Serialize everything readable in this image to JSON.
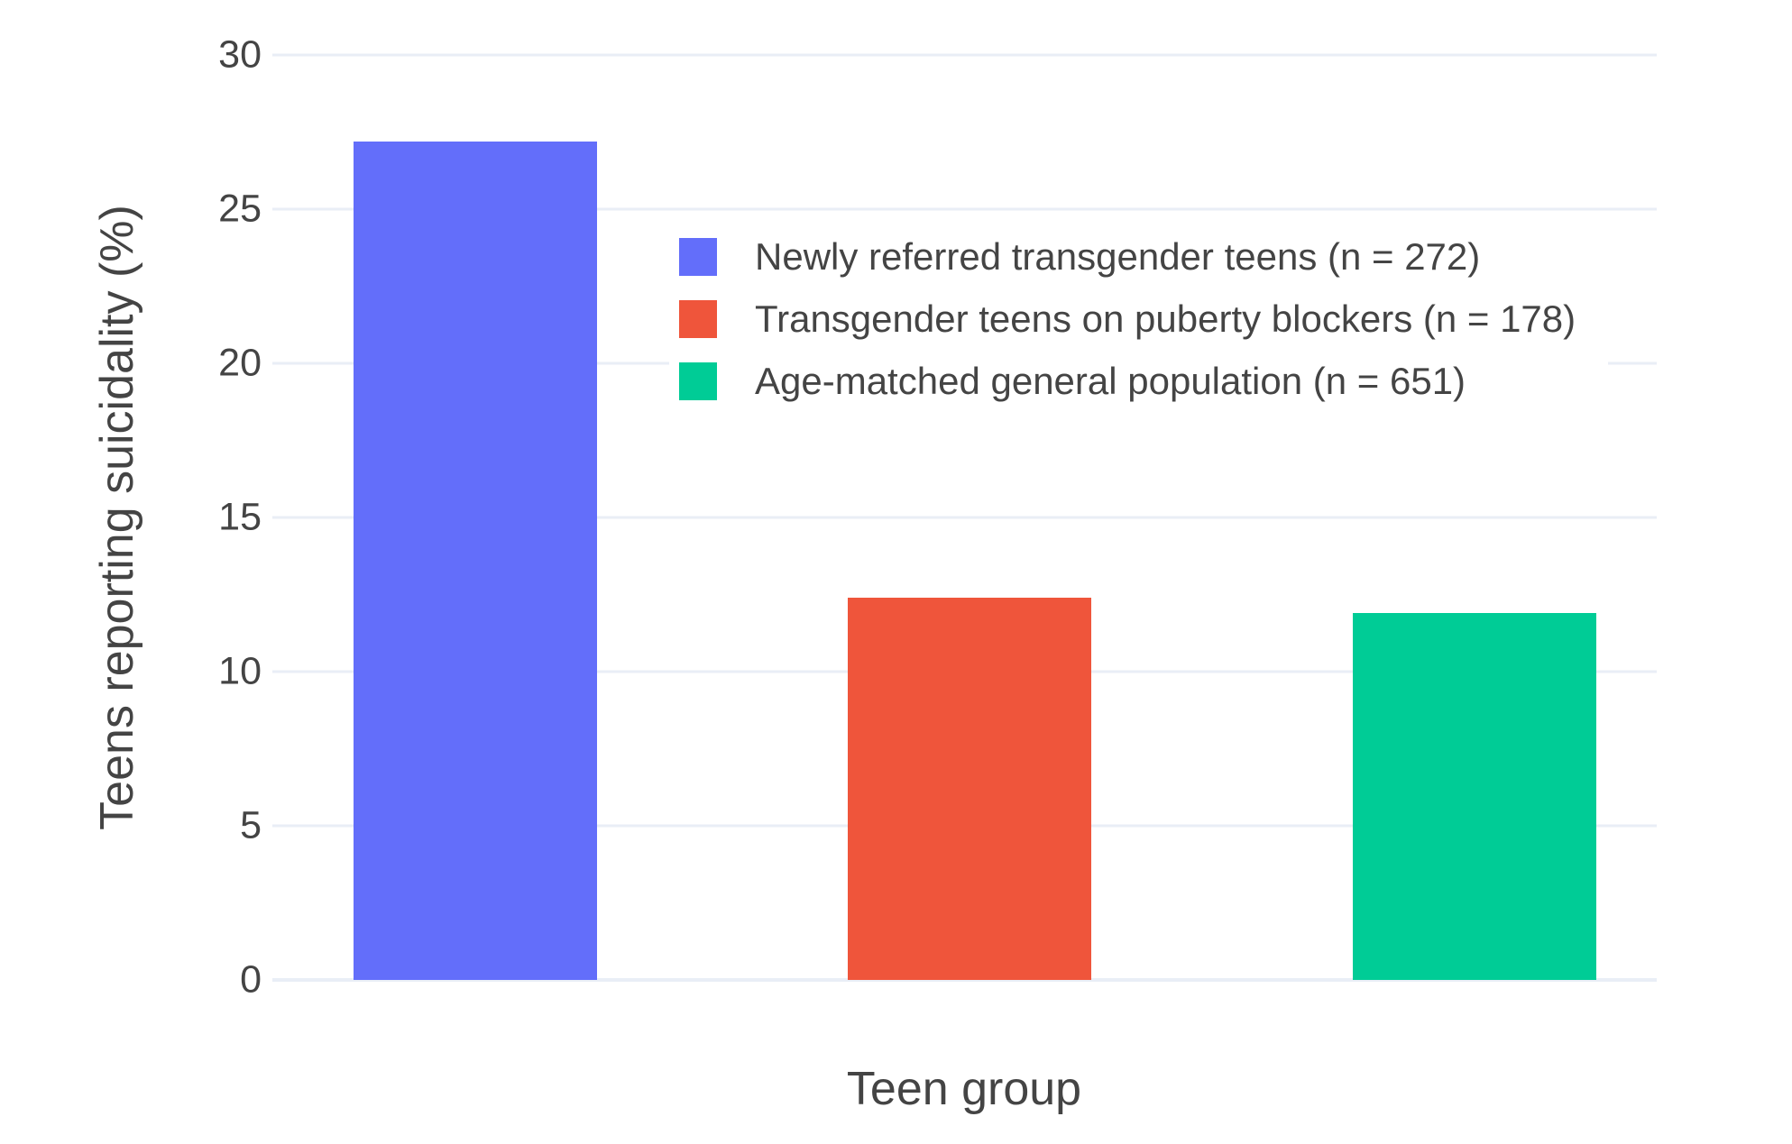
{
  "chart_data": {
    "type": "bar",
    "title": "",
    "xlabel": "Teen group",
    "ylabel": "Teens reporting suicidality (%)",
    "ylim": [
      0,
      30
    ],
    "yticks": [
      0,
      5,
      10,
      15,
      20,
      25,
      30
    ],
    "grid": true,
    "legend_position": "inside top-left of plot",
    "x_tick_labels": [],
    "series": [
      {
        "name": "Newly referred transgender teens (n = 272)",
        "value": 27.2,
        "color": "#636EFA"
      },
      {
        "name": "Transgender teens on puberty blockers (n = 178)",
        "value": 12.4,
        "color": "#EF553B"
      },
      {
        "name": "Age-matched general population (n = 651)",
        "value": 11.9,
        "color": "#00CC96"
      }
    ]
  },
  "colors": {
    "background": "#FFFFFF",
    "gridline": "#E9EEF6",
    "text": "#444444"
  }
}
